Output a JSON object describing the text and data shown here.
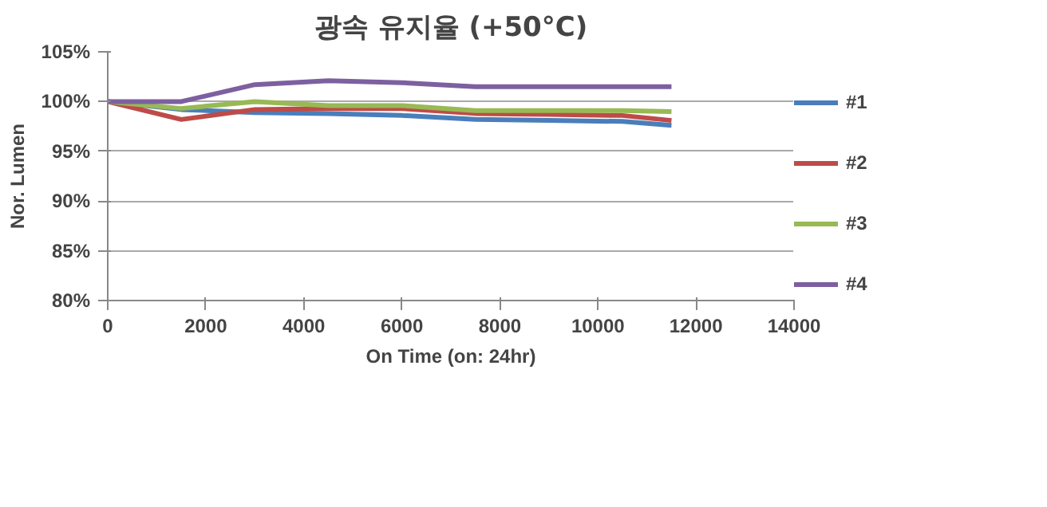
{
  "chart_data": {
    "type": "line",
    "title": "광속 유지율 (+50°C)",
    "xlabel": "On Time (on: 24hr)",
    "ylabel": "Nor. Lumen",
    "xlim": [
      0,
      14000
    ],
    "xticks": [
      0,
      2000,
      4000,
      6000,
      8000,
      10000,
      12000,
      14000
    ],
    "ylim": [
      80,
      105
    ],
    "yticks": [
      {
        "value": 80,
        "label": "80%"
      },
      {
        "value": 85,
        "label": "85%"
      },
      {
        "value": 90,
        "label": "90%"
      },
      {
        "value": 95,
        "label": "95%"
      },
      {
        "value": 100,
        "label": "100%"
      },
      {
        "value": 105,
        "label": "105%"
      }
    ],
    "grid": "y",
    "legend": "right",
    "marker": "none",
    "line_style": "solid",
    "x": [
      0,
      1500,
      3000,
      4500,
      6000,
      7500,
      9000,
      10500,
      11500
    ],
    "series": [
      {
        "name": "#1",
        "color": "#4a7ebb",
        "values": [
          100,
          99.2,
          98.9,
          98.8,
          98.6,
          98.2,
          98.1,
          98.0,
          97.6
        ]
      },
      {
        "name": "#2",
        "color": "#be4b48",
        "values": [
          100,
          98.2,
          99.2,
          99.3,
          99.3,
          98.8,
          98.7,
          98.6,
          98.1
        ]
      },
      {
        "name": "#3",
        "color": "#98b954",
        "values": [
          100,
          99.3,
          100,
          99.6,
          99.6,
          99.1,
          99.1,
          99.1,
          99.0
        ]
      },
      {
        "name": "#4",
        "color": "#7d60a0",
        "values": [
          100,
          100,
          101.7,
          102.1,
          101.9,
          101.5,
          101.5,
          101.5,
          101.5
        ]
      }
    ]
  }
}
